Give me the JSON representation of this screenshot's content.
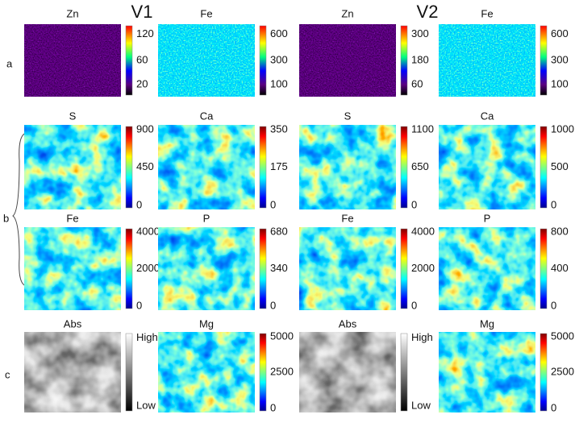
{
  "header": {
    "v1": "V1",
    "v2": "V2"
  },
  "row_labels": [
    "a",
    "b",
    "c"
  ],
  "panels": [
    {
      "title": "Zn",
      "ticks": [
        120,
        60,
        20
      ]
    },
    {
      "title": "Fe",
      "ticks": [
        600,
        300,
        100
      ]
    },
    {
      "title": "Zn",
      "ticks": [
        300,
        180,
        60
      ]
    },
    {
      "title": "Fe",
      "ticks": [
        600,
        300,
        100
      ]
    },
    {
      "title": "S",
      "ticks": [
        900,
        450,
        0
      ]
    },
    {
      "title": "Ca",
      "ticks": [
        350,
        175,
        0
      ]
    },
    {
      "title": "S",
      "ticks": [
        1100,
        650,
        0
      ]
    },
    {
      "title": "Ca",
      "ticks": [
        1000,
        500,
        0
      ]
    },
    {
      "title": "Fe",
      "ticks": [
        4000,
        2000,
        0
      ]
    },
    {
      "title": "P",
      "ticks": [
        680,
        340,
        0
      ]
    },
    {
      "title": "Fe",
      "ticks": [
        4000,
        2000,
        0
      ]
    },
    {
      "title": "P",
      "ticks": [
        800,
        400,
        0
      ]
    },
    {
      "title": "Abs",
      "ticks": [
        "High",
        "Low"
      ]
    },
    {
      "title": "Mg",
      "ticks": [
        5000,
        2500,
        0
      ]
    },
    {
      "title": "Abs",
      "ticks": [
        "High",
        "Low"
      ]
    },
    {
      "title": "Mg",
      "ticks": [
        5000,
        2500,
        0
      ]
    }
  ]
}
